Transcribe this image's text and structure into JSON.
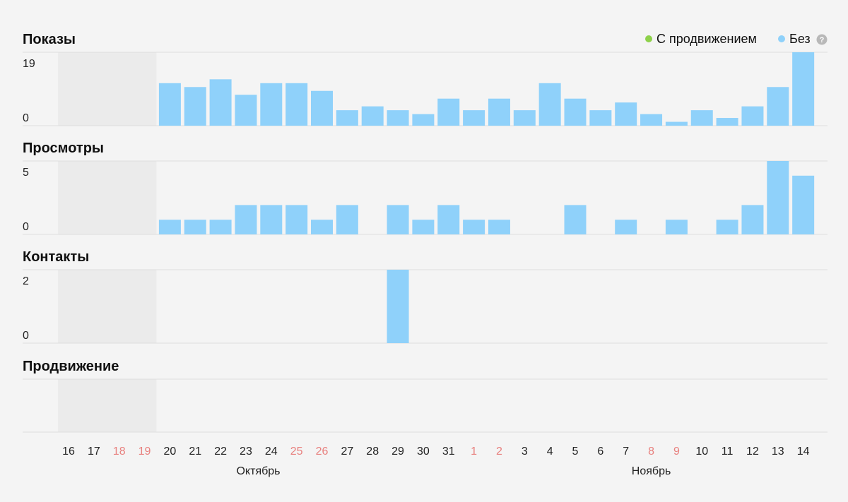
{
  "legend": {
    "promo_label": "С продвижением",
    "promo_color": "#8ed14a",
    "plain_label": "Без",
    "plain_color": "#8fd1fa",
    "help_icon": "question-circle-icon",
    "help_glyph": "?"
  },
  "colors": {
    "bar": "#8fd1fa",
    "weekend_tick": "#e8807e",
    "inactive_band": "#ebebeb",
    "grid": "#dedede"
  },
  "inactive_days": [
    "16",
    "17",
    "18",
    "19"
  ],
  "months": [
    {
      "label": "Октябрь",
      "center_day": "26"
    },
    {
      "label": "Ноябрь",
      "center_day": "8"
    }
  ],
  "chart_data": {
    "type": "bar",
    "categories": [
      "16",
      "17",
      "18",
      "19",
      "20",
      "21",
      "22",
      "23",
      "24",
      "25",
      "26",
      "27",
      "28",
      "29",
      "30",
      "31",
      "1",
      "2",
      "3",
      "4",
      "5",
      "6",
      "7",
      "8",
      "9",
      "10",
      "11",
      "12",
      "13",
      "14"
    ],
    "weekend": [
      false,
      false,
      true,
      true,
      false,
      false,
      false,
      false,
      false,
      true,
      true,
      false,
      false,
      false,
      false,
      false,
      true,
      true,
      false,
      false,
      false,
      false,
      false,
      true,
      true,
      false,
      false,
      false,
      false,
      false
    ],
    "panels": [
      {
        "title": "Показы",
        "yticks": [
          "19",
          "0"
        ],
        "ylim": [
          0,
          19
        ],
        "series": [
          {
            "name": "Без",
            "values": [
              null,
              null,
              null,
              null,
              11,
              10,
              12,
              8,
              11,
              11,
              9,
              4,
              5,
              4,
              3,
              7,
              4,
              7,
              4,
              11,
              7,
              4,
              6,
              3,
              1,
              4,
              2,
              5,
              10,
              19
            ]
          }
        ]
      },
      {
        "title": "Просмотры",
        "yticks": [
          "5",
          "0"
        ],
        "ylim": [
          0,
          5
        ],
        "series": [
          {
            "name": "Без",
            "values": [
              null,
              null,
              null,
              null,
              1,
              1,
              1,
              2,
              2,
              2,
              1,
              2,
              0,
              2,
              1,
              2,
              1,
              1,
              0,
              0,
              2,
              0,
              1,
              0,
              1,
              0,
              1,
              2,
              5,
              4
            ]
          }
        ]
      },
      {
        "title": "Контакты",
        "yticks": [
          "2",
          "0"
        ],
        "ylim": [
          0,
          2
        ],
        "series": [
          {
            "name": "Без",
            "values": [
              null,
              null,
              null,
              null,
              0,
              0,
              0,
              0,
              0,
              0,
              0,
              0,
              0,
              2,
              0,
              0,
              0,
              0,
              0,
              0,
              0,
              0,
              0,
              0,
              0,
              0,
              0,
              0,
              0,
              0
            ]
          }
        ]
      },
      {
        "title": "Продвижение",
        "yticks": [],
        "ylim": [
          0,
          1
        ],
        "series": []
      }
    ]
  }
}
